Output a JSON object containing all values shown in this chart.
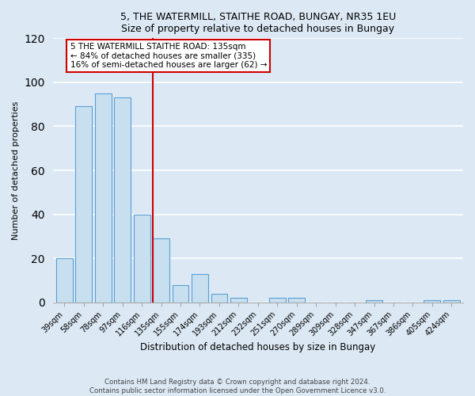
{
  "title1": "5, THE WATERMILL, STAITHE ROAD, BUNGAY, NR35 1EU",
  "title2": "Size of property relative to detached houses in Bungay",
  "xlabel": "Distribution of detached houses by size in Bungay",
  "ylabel": "Number of detached properties",
  "categories": [
    "39sqm",
    "58sqm",
    "78sqm",
    "97sqm",
    "116sqm",
    "135sqm",
    "155sqm",
    "174sqm",
    "193sqm",
    "212sqm",
    "232sqm",
    "251sqm",
    "270sqm",
    "289sqm",
    "309sqm",
    "328sqm",
    "347sqm",
    "367sqm",
    "386sqm",
    "405sqm",
    "424sqm"
  ],
  "values": [
    20,
    89,
    95,
    93,
    40,
    29,
    8,
    13,
    4,
    2,
    0,
    2,
    2,
    0,
    0,
    0,
    1,
    0,
    0,
    1,
    1
  ],
  "bar_color": "#c8dff0",
  "bar_edge_color": "#5a9fd4",
  "highlight_index": 5,
  "highlight_line_color": "#cc0000",
  "annotation_title": "5 THE WATERMILL STAITHE ROAD: 135sqm",
  "annotation_line1": "← 84% of detached houses are smaller (335)",
  "annotation_line2": "16% of semi-detached houses are larger (62) →",
  "annotation_box_color": "#ffffff",
  "annotation_box_edge": "#cc0000",
  "bg_color": "#dce9f5",
  "ylim": [
    0,
    120
  ],
  "yticks": [
    0,
    20,
    40,
    60,
    80,
    100,
    120
  ],
  "footer1": "Contains HM Land Registry data © Crown copyright and database right 2024.",
  "footer2": "Contains public sector information licensed under the Open Government Licence v3.0."
}
